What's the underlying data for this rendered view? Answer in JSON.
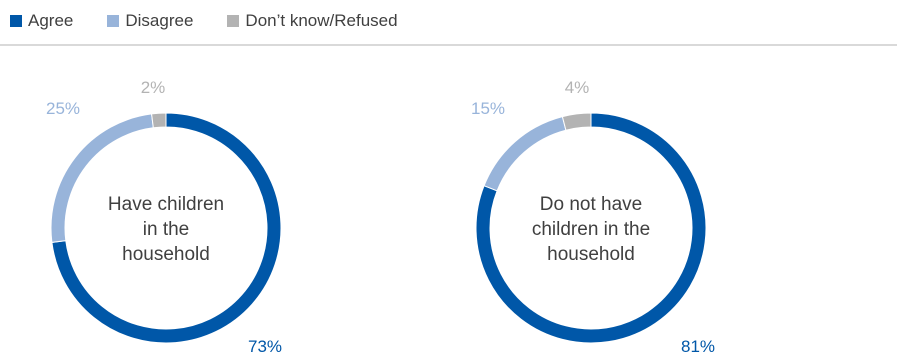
{
  "legend": [
    {
      "label": "Agree",
      "color": "#0057a8"
    },
    {
      "label": "Disagree",
      "color": "#98b4da"
    },
    {
      "label": "Don’t know/Refused",
      "color": "#b3b3b3"
    }
  ],
  "chart_data": [
    {
      "type": "pie",
      "center_label": [
        "Have children",
        "in the",
        "household"
      ],
      "categories": [
        "Agree",
        "Disagree",
        "Don’t know/Refused"
      ],
      "values": [
        73,
        25,
        2
      ],
      "value_labels": [
        "73%",
        "25%",
        "2%"
      ],
      "colors": [
        "#0057a8",
        "#98b4da",
        "#b3b3b3"
      ]
    },
    {
      "type": "pie",
      "center_label": [
        "Do not have",
        "children in the",
        "household"
      ],
      "categories": [
        "Agree",
        "Disagree",
        "Don’t know/Refused"
      ],
      "values": [
        81,
        15,
        4
      ],
      "value_labels": [
        "81%",
        "15%",
        "4%"
      ],
      "colors": [
        "#0057a8",
        "#98b4da",
        "#b3b3b3"
      ]
    }
  ]
}
